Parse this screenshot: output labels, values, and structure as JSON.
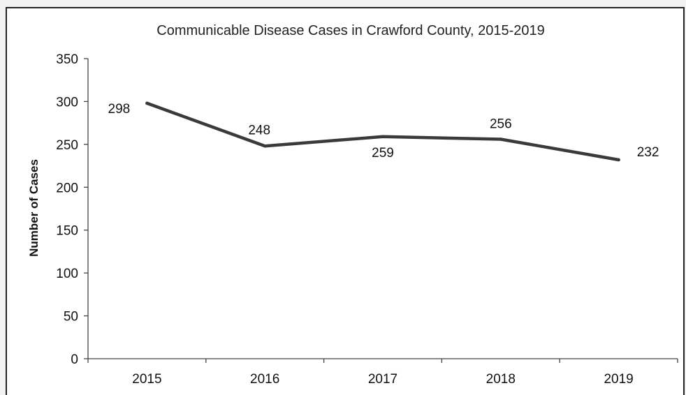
{
  "chart_data": {
    "type": "line",
    "title": "Communicable Disease Cases in Crawford County, 2015-2019",
    "xlabel": "",
    "ylabel": "Number of Cases",
    "categories": [
      "2015",
      "2016",
      "2017",
      "2018",
      "2019"
    ],
    "values": [
      298,
      248,
      259,
      256,
      232
    ],
    "data_labels": [
      "298",
      "248",
      "259",
      "256",
      "232"
    ],
    "ylim": [
      0,
      350
    ],
    "yticks": [
      0,
      50,
      100,
      150,
      200,
      250,
      300,
      350
    ],
    "ytick_labels": [
      "0",
      "50",
      "100",
      "150",
      "200",
      "250",
      "300",
      "350"
    ],
    "grid": false,
    "legend": "none",
    "line_color": "#3a3a3a"
  }
}
